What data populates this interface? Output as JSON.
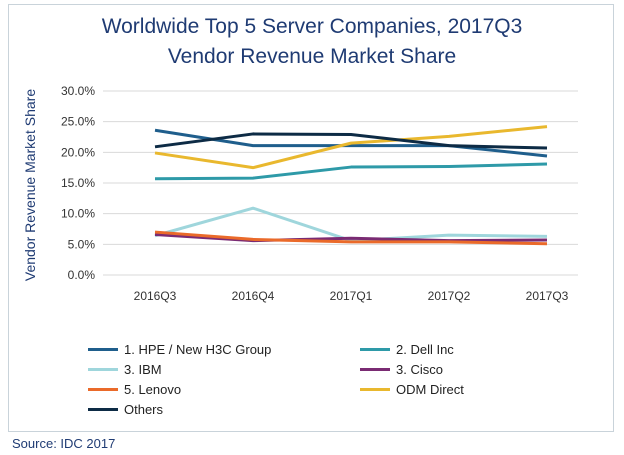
{
  "chart_data": {
    "type": "line",
    "title": "Worldwide Top 5 Server Companies, 2017Q3",
    "subtitle": "Vendor Revenue Market Share",
    "xlabel": "",
    "ylabel": "Vendor Revenue Market Share",
    "categories": [
      "2016Q3",
      "2016Q4",
      "2017Q1",
      "2017Q2",
      "2017Q3"
    ],
    "ylim": [
      0,
      30
    ],
    "yticks": [
      "0.0%",
      "5.0%",
      "10.0%",
      "15.0%",
      "20.0%",
      "25.0%",
      "30.0%"
    ],
    "grid": true,
    "legend_position": "bottom",
    "series": [
      {
        "name": "1. HPE / New H3C Group",
        "color": "#1f5e8c",
        "values": [
          23.6,
          21.1,
          21.1,
          21.1,
          19.4
        ]
      },
      {
        "name": "2. Dell Inc",
        "color": "#2e9aa8",
        "values": [
          15.7,
          15.8,
          17.6,
          17.7,
          18.1
        ]
      },
      {
        "name": "3. IBM",
        "color": "#9fd6dc",
        "values": [
          6.4,
          10.9,
          5.6,
          6.5,
          6.3
        ]
      },
      {
        "name": "3. Cisco",
        "color": "#7a2b73",
        "values": [
          6.6,
          5.6,
          6.0,
          5.6,
          5.7
        ]
      },
      {
        "name": "5. Lenovo",
        "color": "#ea6a2a",
        "values": [
          7.0,
          5.8,
          5.4,
          5.4,
          5.1
        ]
      },
      {
        "name": "ODM Direct",
        "color": "#e9b82e",
        "values": [
          19.9,
          17.5,
          21.5,
          22.6,
          24.2
        ]
      },
      {
        "name": "Others",
        "color": "#0d2b45",
        "values": [
          20.9,
          23.0,
          22.9,
          21.1,
          20.7
        ]
      }
    ]
  },
  "source": "Source: IDC 2017"
}
